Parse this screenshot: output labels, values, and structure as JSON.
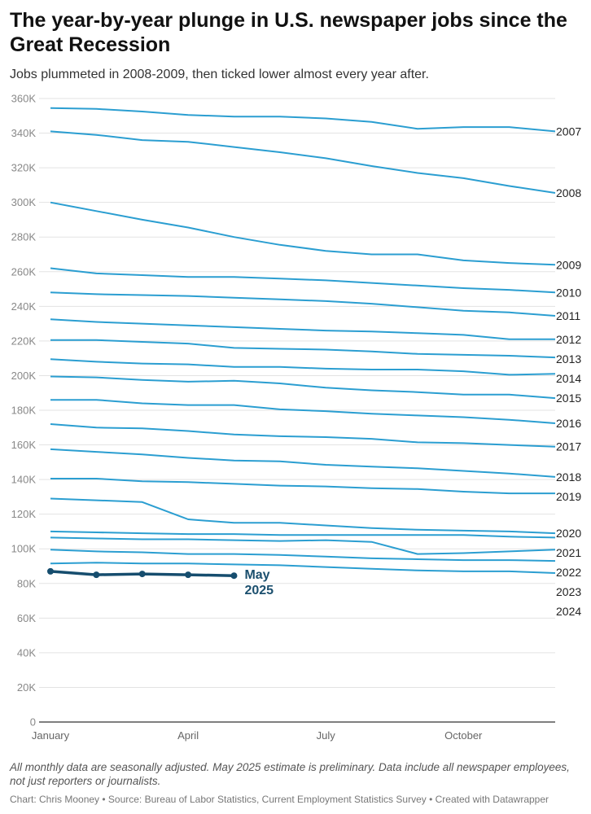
{
  "title": "The year-by-year plunge in U.S. newspaper jobs since the Great Recession",
  "subtitle": "Jobs plummeted in 2008-2009, then ticked lower almost every year after.",
  "notes": "All monthly data are seasonally adjusted. May 2025 estimate is preliminary. Data include all newspaper employees, not just reporters or journalists.",
  "footer": "Chart: Chris Mooney • Source: Bureau of Labor Statistics, Current Employment Statistics Survey • Created with Datawrapper",
  "colors": {
    "series": "#2b9ed1",
    "highlight": "#164d6e",
    "grid": "#e3e3e3",
    "axis": "#333333"
  },
  "chart_data": {
    "type": "line",
    "x": [
      "January",
      "February",
      "March",
      "April",
      "May",
      "June",
      "July",
      "August",
      "September",
      "October",
      "November",
      "December"
    ],
    "x_tick_labels": [
      "January",
      "April",
      "July",
      "October"
    ],
    "ylim": [
      0,
      360000
    ],
    "y_tick_labels": [
      "0",
      "20K",
      "40K",
      "60K",
      "80K",
      "100K",
      "120K",
      "140K",
      "160K",
      "180K",
      "200K",
      "220K",
      "240K",
      "260K",
      "280K",
      "300K",
      "320K",
      "340K",
      "360K"
    ],
    "grid": true,
    "series": [
      {
        "name": "2007",
        "values": [
          354500,
          354000,
          352500,
          350500,
          349500,
          349500,
          348500,
          346500,
          342500,
          343500,
          343500,
          341000
        ]
      },
      {
        "name": "2008",
        "values": [
          341000,
          339000,
          336000,
          335000,
          332000,
          329000,
          325500,
          321000,
          317000,
          314000,
          309500,
          305500
        ]
      },
      {
        "name": "2009",
        "values": [
          300000,
          295000,
          290000,
          285500,
          280000,
          275500,
          272000,
          270000,
          270000,
          266500,
          265000,
          264000
        ]
      },
      {
        "name": "2010",
        "values": [
          262000,
          259000,
          258000,
          257000,
          257000,
          256000,
          255000,
          253500,
          252000,
          250500,
          249500,
          248000
        ]
      },
      {
        "name": "2011",
        "values": [
          248000,
          247000,
          246500,
          246000,
          245000,
          244000,
          243000,
          241500,
          239500,
          237500,
          236500,
          234500
        ]
      },
      {
        "name": "2012",
        "values": [
          232500,
          231000,
          230000,
          229000,
          228000,
          227000,
          226000,
          225500,
          224500,
          223500,
          221000,
          221000
        ]
      },
      {
        "name": "2013",
        "values": [
          220500,
          220500,
          219500,
          218500,
          216000,
          215500,
          215000,
          214000,
          212500,
          212000,
          211500,
          210500
        ]
      },
      {
        "name": "2014",
        "values": [
          209500,
          208000,
          207000,
          206500,
          205000,
          205000,
          204000,
          203500,
          203500,
          202500,
          200500,
          201000
        ]
      },
      {
        "name": "2015",
        "values": [
          199500,
          199000,
          197500,
          196500,
          197000,
          195500,
          193000,
          191500,
          190500,
          189000,
          189000,
          187000
        ]
      },
      {
        "name": "2016",
        "values": [
          186000,
          186000,
          184000,
          183000,
          183000,
          180500,
          179500,
          178000,
          177000,
          176000,
          174500,
          172500
        ]
      },
      {
        "name": "2017",
        "values": [
          172000,
          170000,
          169500,
          168000,
          166000,
          165000,
          164500,
          163500,
          161500,
          161000,
          160000,
          159000
        ]
      },
      {
        "name": "2018",
        "values": [
          157500,
          156000,
          154500,
          152500,
          151000,
          150500,
          148500,
          147500,
          146500,
          145000,
          143500,
          141500
        ]
      },
      {
        "name": "2019",
        "values": [
          140500,
          140500,
          139000,
          138500,
          137500,
          136500,
          136000,
          135000,
          134500,
          133000,
          132000,
          132000
        ]
      },
      {
        "name": "2020",
        "values": [
          129000,
          128000,
          127000,
          117000,
          115000,
          115000,
          113500,
          112000,
          111000,
          110500,
          110000,
          109000
        ]
      },
      {
        "name": "2021",
        "values": [
          110000,
          109500,
          109000,
          108500,
          108500,
          108000,
          108000,
          108000,
          108000,
          108000,
          107000,
          106500
        ]
      },
      {
        "name": "2022",
        "values": [
          106500,
          106000,
          105500,
          105500,
          105000,
          104500,
          105000,
          104000,
          97000,
          97500,
          98500,
          99500
        ]
      },
      {
        "name": "2023",
        "values": [
          99500,
          98500,
          98000,
          97000,
          97000,
          96500,
          95500,
          94500,
          94000,
          93500,
          93500,
          93000
        ]
      },
      {
        "name": "2024",
        "values": [
          91500,
          92000,
          91500,
          91500,
          91000,
          90500,
          89500,
          88500,
          87500,
          87000,
          87000,
          86000
        ]
      }
    ],
    "highlight_series": {
      "name": "2025",
      "values": [
        87000,
        85000,
        85500,
        85000,
        84500
      ],
      "label": [
        "May",
        "2025"
      ]
    }
  }
}
